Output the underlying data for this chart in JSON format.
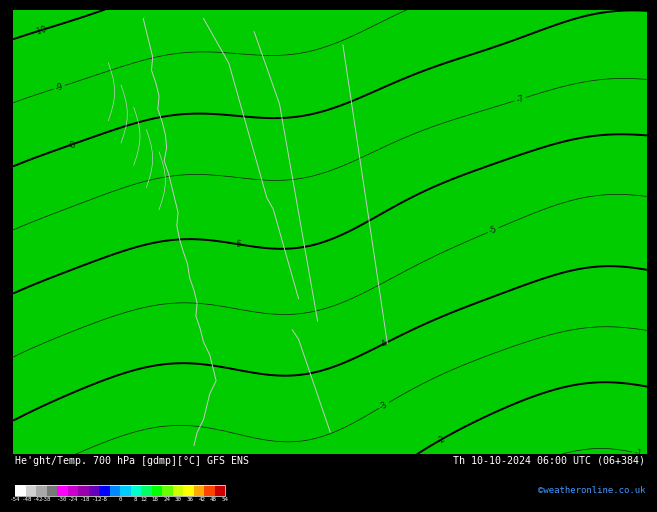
{
  "title_left": "He'ght/Temp. 700 hPa [gdmp][°C] GFS ENS",
  "title_right": "Th 10-10-2024 06:00 UTC (06+384)",
  "credit": "©weatheronline.co.uk",
  "colorbar_ticks": [
    -54,
    -48,
    -42,
    -38,
    -30,
    -24,
    -18,
    -12,
    -8,
    0,
    8,
    12,
    18,
    24,
    30,
    36,
    42,
    48,
    54
  ],
  "cb_colors": [
    "#ffffff",
    "#d0d0d0",
    "#a8a8a8",
    "#787878",
    "#ff00ff",
    "#cc00cc",
    "#9900aa",
    "#6600bb",
    "#0000ff",
    "#0088ff",
    "#00ccff",
    "#00ffcc",
    "#00ff66",
    "#00ff00",
    "#66ff00",
    "#ccff00",
    "#ffff00",
    "#ffaa00",
    "#ff4400",
    "#cc0000"
  ],
  "bg_green": "#00cc00",
  "contour_color": "#1a1a1a",
  "bold_contour_color": "#000000",
  "coast_color": "#c8c8c8",
  "label_fontsize": 5.5,
  "map_facecolor": "#00bb00"
}
